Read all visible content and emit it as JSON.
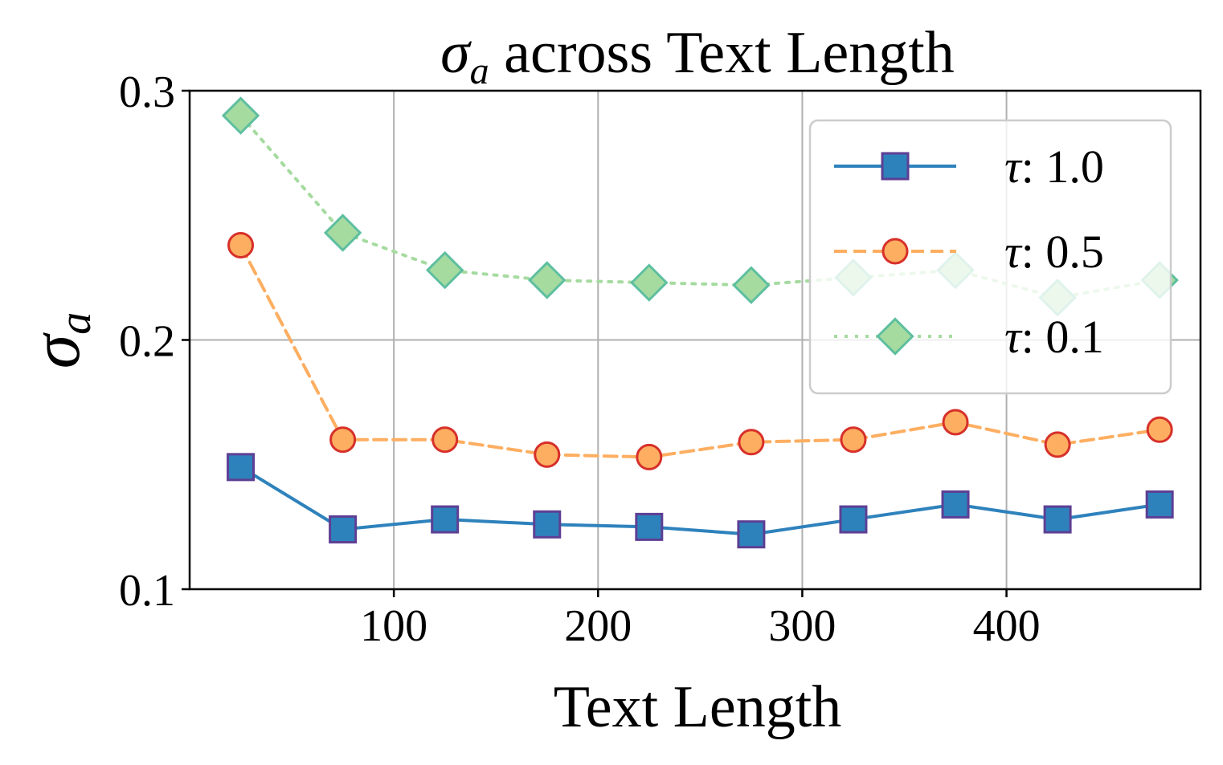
{
  "chart_data": {
    "type": "line",
    "title": {
      "symbol": "σ",
      "subscript": "a",
      "text": " across Text Length"
    },
    "xlabel": "Text Length",
    "ylabel": {
      "symbol": "σ",
      "subscript": "a"
    },
    "xlim": [
      0,
      495
    ],
    "ylim": [
      0.1,
      0.3
    ],
    "xticks": [
      100,
      200,
      300,
      400
    ],
    "xtick_labels": [
      "100",
      "200",
      "300",
      "400"
    ],
    "yticks": [
      0.1,
      0.2,
      0.3
    ],
    "ytick_labels": [
      "0.1",
      "0.2",
      "0.3"
    ],
    "grid": true,
    "legend_position": "top-right",
    "x": [
      25,
      75,
      125,
      175,
      225,
      275,
      325,
      375,
      425,
      475
    ],
    "series": [
      {
        "name": "τ: 1.0",
        "legend_symbol": "τ",
        "legend_value": ": 1.0",
        "values": [
          0.149,
          0.124,
          0.128,
          0.126,
          0.125,
          0.122,
          0.128,
          0.134,
          0.128,
          0.134
        ],
        "color": "#2e82bc",
        "marker": "square",
        "marker_fill": "#2e82bc",
        "marker_edge": "#5e3f94",
        "linestyle": "solid"
      },
      {
        "name": "τ: 0.5",
        "legend_symbol": "τ",
        "legend_value": ": 0.5",
        "values": [
          0.238,
          0.16,
          0.16,
          0.154,
          0.153,
          0.159,
          0.16,
          0.167,
          0.158,
          0.164
        ],
        "color": "#fdae61",
        "marker": "circle",
        "marker_fill": "#fdae61",
        "marker_edge": "#d7302a",
        "linestyle": "dashed"
      },
      {
        "name": "τ: 0.1",
        "legend_symbol": "τ",
        "legend_value": ": 0.1",
        "values": [
          0.29,
          0.243,
          0.228,
          0.224,
          0.223,
          0.222,
          0.225,
          0.228,
          0.217,
          0.224
        ],
        "color": "#a6dba0",
        "marker": "diamond",
        "marker_fill": "#a6dba0",
        "marker_edge": "#5ebfa0",
        "linestyle": "dotted"
      }
    ]
  }
}
